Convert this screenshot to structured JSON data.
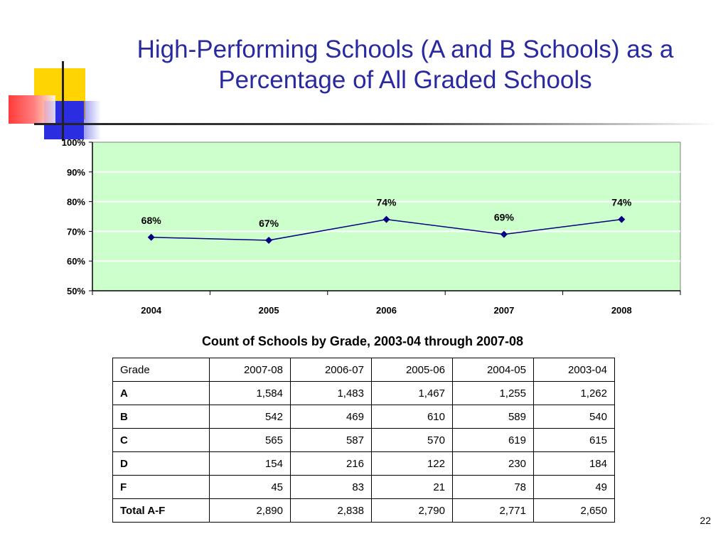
{
  "slide": {
    "title": "High-Performing Schools (A and B Schools) as a Percentage of All Graded Schools",
    "page_number": "22"
  },
  "colors": {
    "title": "#2a2aa0",
    "plot_background": "#ccffcc",
    "series_line": "#000080",
    "gridline": "#ffffff"
  },
  "chart_data": {
    "type": "line",
    "title": "",
    "xlabel": "",
    "ylabel": "",
    "x": [
      "2004",
      "2005",
      "2006",
      "2007",
      "2008"
    ],
    "series": [
      {
        "values": [
          68,
          67,
          74,
          69,
          74
        ],
        "data_labels": [
          "68%",
          "67%",
          "74%",
          "69%",
          "74%"
        ]
      }
    ],
    "y_ticks": [
      "50%",
      "60%",
      "70%",
      "80%",
      "90%",
      "100%"
    ],
    "ylim": [
      50,
      100
    ],
    "grid": true,
    "marker": "diamond"
  },
  "table": {
    "caption": "Count of Schools by Grade, 2003-04 through 2007-08",
    "headers": [
      "Grade",
      "2007-08",
      "2006-07",
      "2005-06",
      "2004-05",
      "2003-04"
    ],
    "rows": [
      [
        "A",
        "1,584",
        "1,483",
        "1,467",
        "1,255",
        "1,262"
      ],
      [
        "B",
        "542",
        "469",
        "610",
        "589",
        "540"
      ],
      [
        "C",
        "565",
        "587",
        "570",
        "619",
        "615"
      ],
      [
        "D",
        "154",
        "216",
        "122",
        "230",
        "184"
      ],
      [
        "F",
        "45",
        "83",
        "21",
        "78",
        "49"
      ],
      [
        "Total A-F",
        "2,890",
        "2,838",
        "2,790",
        "2,771",
        "2,650"
      ]
    ]
  }
}
